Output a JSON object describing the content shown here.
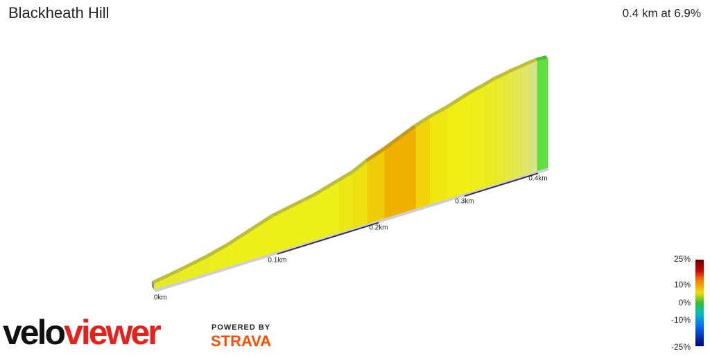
{
  "header": {
    "title": "Blackheath Hill",
    "summary": "0.4 km at 6.9%"
  },
  "profile": {
    "distance_labels": [
      "0km",
      "0.1km",
      "0.2km",
      "0.3km",
      "0.4km"
    ]
  },
  "legend": {
    "labels": [
      "25%",
      "10%",
      "0%",
      "-10%",
      "-25%"
    ]
  },
  "branding": {
    "logo_dark": "velo",
    "logo_red": "viewer",
    "powered": "POWERED BY",
    "strava": "STRAVA"
  }
}
